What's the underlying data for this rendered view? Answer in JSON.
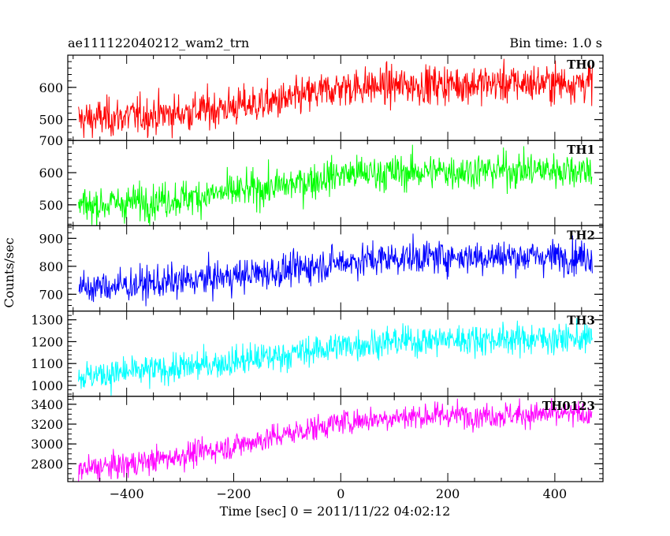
{
  "header": {
    "left_title": "ae111122040212_wam2_trn",
    "right_title": "Bin time: 1.0 s"
  },
  "chart_data": {
    "type": "line",
    "title": "ae111122040212_wam2_trn",
    "subtitle": "Bin time: 1.0 s",
    "xlabel": "Time [sec] 0 = 2011/11/22 04:02:12",
    "ylabel": "Counts/sec",
    "xlim": [
      -510,
      490
    ],
    "xticks": [
      -400,
      -200,
      0,
      200,
      400
    ],
    "bin_time_s": 1.0,
    "grid": false,
    "panels": [
      {
        "name": "TH0",
        "color": "#ff0000",
        "ylim": [
          435,
          700
        ],
        "yticks": [
          500,
          600
        ],
        "trend": {
          "x": [
            -490,
            -300,
            -100,
            0,
            100,
            200,
            470
          ],
          "y": [
            500,
            520,
            560,
            600,
            605,
            610,
            615
          ]
        },
        "noise_sd": 30
      },
      {
        "name": "TH1",
        "color": "#00ff00",
        "ylim": [
          435,
          700
        ],
        "yticks": [
          500,
          600,
          700
        ],
        "trend": {
          "x": [
            -490,
            -300,
            -100,
            0,
            100,
            200,
            470
          ],
          "y": [
            495,
            520,
            560,
            595,
            600,
            605,
            610
          ]
        },
        "noise_sd": 28
      },
      {
        "name": "TH2",
        "color": "#0000ff",
        "ylim": [
          640,
          945
        ],
        "yticks": [
          700,
          800,
          900
        ],
        "trend": {
          "x": [
            -490,
            -300,
            -100,
            0,
            100,
            200,
            470
          ],
          "y": [
            720,
            745,
            785,
            815,
            830,
            835,
            835
          ]
        },
        "noise_sd": 30
      },
      {
        "name": "TH3",
        "color": "#00ffff",
        "ylim": [
          950,
          1340
        ],
        "yticks": [
          1000,
          1100,
          1200,
          1300
        ],
        "trend": {
          "x": [
            -490,
            -300,
            -100,
            0,
            100,
            200,
            470
          ],
          "y": [
            1040,
            1080,
            1140,
            1180,
            1200,
            1210,
            1215
          ]
        },
        "noise_sd": 35
      },
      {
        "name": "TH0123",
        "color": "#ff00ff",
        "ylim": [
          2620,
          3480
        ],
        "yticks": [
          2800,
          3000,
          3200,
          3400
        ],
        "trend": {
          "x": [
            -490,
            -400,
            -300,
            -200,
            -100,
            0,
            100,
            200,
            470
          ],
          "y": [
            2740,
            2790,
            2880,
            2980,
            3100,
            3220,
            3270,
            3290,
            3300
          ]
        },
        "noise_sd": 65
      }
    ]
  }
}
